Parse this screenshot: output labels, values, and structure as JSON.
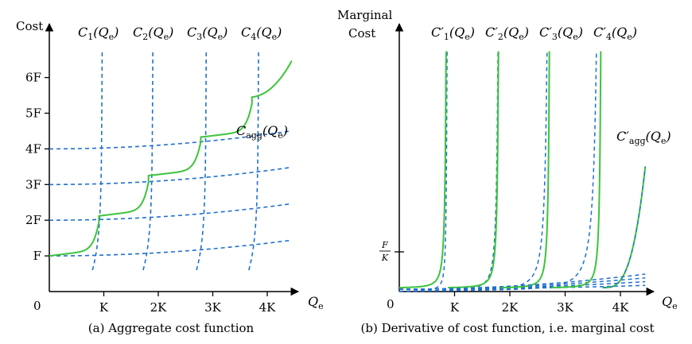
{
  "colors": {
    "component": "#1f6fcf",
    "aggregate": "#3cc43c",
    "axis": "#000000"
  },
  "chart_data": [
    {
      "type": "line",
      "title": "(a) Aggregate cost function",
      "ylabel": "Cost",
      "xlabel_math": {
        "base": "Q",
        "sub": "e"
      },
      "origin_label": "0",
      "x_ticks": [
        {
          "value": 1,
          "label": "K"
        },
        {
          "value": 2,
          "label": "2K"
        },
        {
          "value": 3,
          "label": "3K"
        },
        {
          "value": 4,
          "label": "4K"
        }
      ],
      "y_ticks": [
        {
          "value": 1,
          "label": "F"
        },
        {
          "value": 2,
          "label": "2F"
        },
        {
          "value": 3,
          "label": "3F"
        },
        {
          "value": 4,
          "label": "4F"
        },
        {
          "value": 5,
          "label": "5F"
        },
        {
          "value": 6,
          "label": "6F"
        }
      ],
      "xlim": [
        0,
        4.85
      ],
      "ylim": [
        0,
        7.25
      ],
      "series": [
        {
          "name": "C1(Qe)",
          "math": {
            "base": "C",
            "sub": "1",
            "arg": "(Q",
            "argsub": "e",
            "close": ")"
          },
          "style": "dashed",
          "capacity": 0.95,
          "level": 1,
          "x_max": 4.45
        },
        {
          "name": "C2(Qe)",
          "math": {
            "base": "C",
            "sub": "2",
            "arg": "(Q",
            "argsub": "e",
            "close": ")"
          },
          "style": "dashed",
          "capacity": 1.88,
          "level": 2,
          "x_max": 4.45
        },
        {
          "name": "C3(Qe)",
          "math": {
            "base": "C",
            "sub": "3",
            "arg": "(Q",
            "argsub": "e",
            "close": ")"
          },
          "style": "dashed",
          "capacity": 2.86,
          "level": 3,
          "x_max": 4.45
        },
        {
          "name": "C4(Qe)",
          "math": {
            "base": "C",
            "sub": "4",
            "arg": "(Q",
            "argsub": "e",
            "close": ")"
          },
          "style": "dashed",
          "capacity": 3.82,
          "level": 4,
          "x_max": 4.45
        },
        {
          "name": "Cagg(Qe)",
          "math": {
            "base": "C",
            "sub": "agg",
            "arg": "(Q",
            "argsub": "e",
            "close": ")"
          },
          "style": "solid",
          "x_max": 4.45
        }
      ]
    },
    {
      "type": "line",
      "title": "(b) Derivative of cost function, i.e. marginal cost",
      "ylabel_lines": [
        "Marginal",
        "Cost"
      ],
      "xlabel_math": {
        "base": "Q",
        "sub": "e"
      },
      "origin_label": "0",
      "x_ticks": [
        {
          "value": 1,
          "label": "K"
        },
        {
          "value": 2,
          "label": "2K"
        },
        {
          "value": 3,
          "label": "3K"
        },
        {
          "value": 4,
          "label": "4K"
        }
      ],
      "y_ticks": [
        {
          "value": 1,
          "label_num": "F",
          "label_den": "K"
        }
      ],
      "xlim": [
        0,
        4.85
      ],
      "ylim": [
        0,
        6.4
      ],
      "series": [
        {
          "name": "C'1(Qe)",
          "math": {
            "base": "C",
            "sub": "1",
            "prime": "′",
            "arg": "(Q",
            "argsub": "e",
            "close": ")"
          },
          "style": "dashed",
          "capacity": 0.88
        },
        {
          "name": "C'2(Qe)",
          "math": {
            "base": "C",
            "sub": "2",
            "prime": "′",
            "arg": "(Q",
            "argsub": "e",
            "close": ")"
          },
          "style": "dashed",
          "capacity": 1.83
        },
        {
          "name": "C'3(Qe)",
          "math": {
            "base": "C",
            "sub": "3",
            "prime": "′",
            "arg": "(Q",
            "argsub": "e",
            "close": ")"
          },
          "style": "dashed",
          "capacity": 2.75
        },
        {
          "name": "C'4(Qe)",
          "math": {
            "base": "C",
            "sub": "4",
            "prime": "′",
            "arg": "(Q",
            "argsub": "e",
            "close": ")"
          },
          "style": "dashed",
          "capacity": 3.68
        },
        {
          "name": "C'agg(Qe)",
          "math": {
            "base": "C",
            "sub": "agg",
            "prime": "′",
            "arg": "(Q",
            "argsub": "e",
            "close": ")"
          },
          "style": "solid"
        }
      ]
    }
  ]
}
